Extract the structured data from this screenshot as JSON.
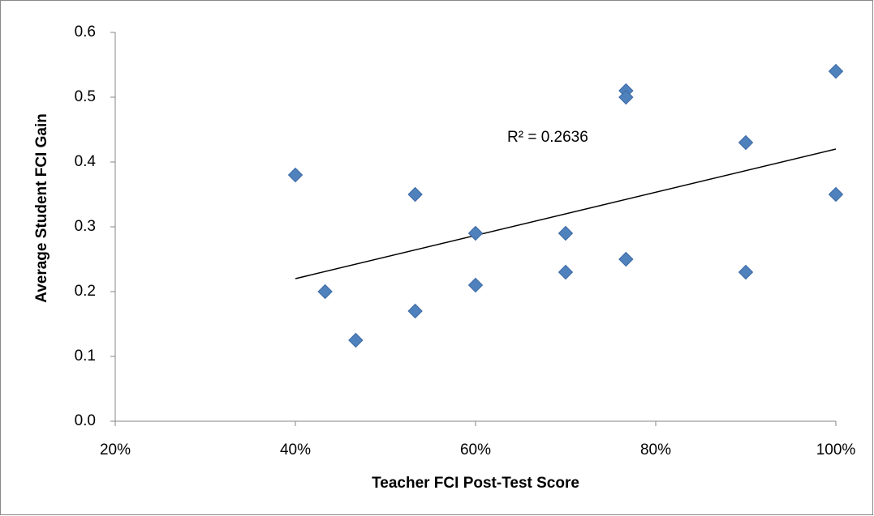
{
  "chart_data": {
    "type": "scatter",
    "xlabel": "Teacher FCI Post-Test Score",
    "ylabel": "Average Student FCI Gain",
    "annotation": "R² = 0.2636",
    "color": "#4f81bd",
    "x": [
      40,
      43.3,
      46.7,
      53.3,
      53.3,
      60,
      60,
      70,
      70,
      76.7,
      76.7,
      76.7,
      90,
      90,
      100,
      100
    ],
    "values": [
      0.38,
      0.2,
      0.125,
      0.35,
      0.17,
      0.29,
      0.21,
      0.29,
      0.23,
      0.51,
      0.5,
      0.25,
      0.43,
      0.23,
      0.54,
      0.35
    ],
    "trendline": {
      "x": [
        40,
        100
      ],
      "y": [
        0.22,
        0.42
      ]
    },
    "xlim": [
      20,
      100
    ],
    "xticks": [
      {
        "value": 20,
        "label": "20%"
      },
      {
        "value": 40,
        "label": "40%"
      },
      {
        "value": 60,
        "label": "60%"
      },
      {
        "value": 80,
        "label": "80%"
      },
      {
        "value": 100,
        "label": "100%"
      }
    ],
    "ylim": [
      0,
      0.6
    ],
    "yticks": [
      {
        "value": 0,
        "label": "0.0"
      },
      0.1,
      0.2,
      0.3,
      0.4,
      0.5,
      0.6
    ],
    "grid": false
  }
}
